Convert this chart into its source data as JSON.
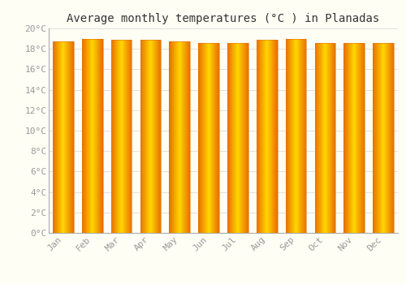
{
  "title": "Average monthly temperatures (°C ) in Planadas",
  "months": [
    "Jan",
    "Feb",
    "Mar",
    "Apr",
    "May",
    "Jun",
    "Jul",
    "Aug",
    "Sep",
    "Oct",
    "Nov",
    "Dec"
  ],
  "values": [
    18.7,
    19.0,
    18.9,
    18.9,
    18.7,
    18.6,
    18.6,
    18.9,
    19.0,
    18.6,
    18.6,
    18.6
  ],
  "ylim": [
    0,
    20
  ],
  "yticks": [
    0,
    2,
    4,
    6,
    8,
    10,
    12,
    14,
    16,
    18,
    20
  ],
  "bar_color_center": "#FFD700",
  "bar_color_edge": "#E87000",
  "background_color": "#FFFEF5",
  "grid_color": "#E0E0E0",
  "title_fontsize": 10,
  "tick_fontsize": 8,
  "title_font": "monospace",
  "tick_color": "#999999",
  "spine_color": "#AAAAAA",
  "bar_width": 0.72,
  "n_gradient_strips": 40
}
